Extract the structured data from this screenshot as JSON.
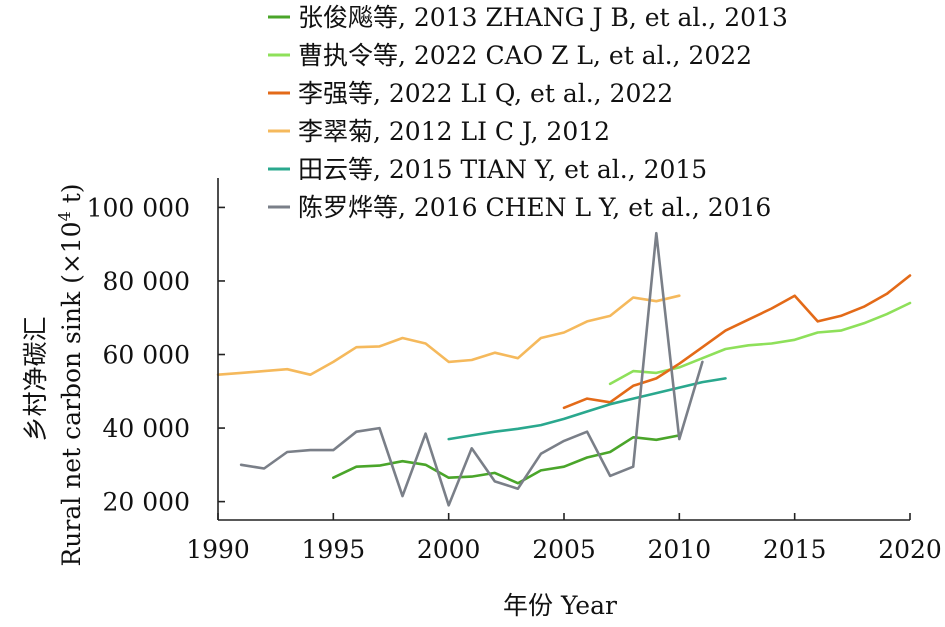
{
  "chart_data": {
    "type": "line",
    "title": "",
    "xlabel": "年份 Year",
    "ylabel_cn": "乡村净碳汇",
    "ylabel_en": "Rural net carbon sink (×10",
    "ylabel_sup": "4",
    "ylabel_tail": " t)",
    "xlim": [
      1990,
      2020
    ],
    "ylim": [
      15000,
      108000
    ],
    "x_ticks": [
      1990,
      1995,
      2000,
      2005,
      2010,
      2015,
      2020
    ],
    "x_tick_labels": [
      "1990",
      "1995",
      "2000",
      "2005",
      "2010",
      "2015",
      "2020"
    ],
    "y_ticks": [
      20000,
      40000,
      60000,
      80000,
      100000
    ],
    "y_tick_labels": [
      "20 000",
      "40 000",
      "60 000",
      "80 000",
      "100 000"
    ],
    "grid": false,
    "legend_position": "top",
    "series": [
      {
        "name": "张俊飚等, 2013 ZHANG J B, et al., 2013",
        "color": "#4aa52a",
        "x": [
          1995,
          1996,
          1997,
          1998,
          1999,
          2000,
          2001,
          2002,
          2003,
          2004,
          2005,
          2006,
          2007,
          2008,
          2009,
          2010
        ],
        "y": [
          26500,
          29500,
          29800,
          31000,
          30000,
          26500,
          26800,
          27800,
          25000,
          28500,
          29500,
          32000,
          33500,
          37500,
          36800,
          38000
        ]
      },
      {
        "name": "曹执令等, 2022 CAO Z L, et al., 2022",
        "color": "#8ee05a",
        "x": [
          2007,
          2008,
          2009,
          2010,
          2011,
          2012,
          2013,
          2014,
          2015,
          2016,
          2017,
          2018,
          2019,
          2020
        ],
        "y": [
          52000,
          55500,
          55000,
          56500,
          59000,
          61500,
          62500,
          63000,
          64000,
          66000,
          66500,
          68500,
          71000,
          74000
        ]
      },
      {
        "name": "李强等, 2022 LI Q, et al., 2022",
        "color": "#e36a18",
        "x": [
          2005,
          2006,
          2007,
          2008,
          2009,
          2010,
          2011,
          2012,
          2013,
          2014,
          2015,
          2016,
          2017,
          2018,
          2019,
          2020
        ],
        "y": [
          45500,
          48000,
          47000,
          51500,
          53500,
          57500,
          62000,
          66500,
          69500,
          72500,
          76000,
          69000,
          70500,
          73000,
          76500,
          81500
        ]
      },
      {
        "name": "李翠菊, 2012 LI C J, 2012",
        "color": "#f5b95c",
        "x": [
          1990,
          1991,
          1992,
          1993,
          1994,
          1995,
          1996,
          1997,
          1998,
          1999,
          2000,
          2001,
          2002,
          2003,
          2004,
          2005,
          2006,
          2007,
          2008,
          2009,
          2010
        ],
        "y": [
          54500,
          55000,
          55500,
          56000,
          54500,
          58000,
          62000,
          62200,
          64500,
          63000,
          58000,
          58500,
          60500,
          59000,
          64500,
          66000,
          69000,
          70500,
          75500,
          74500,
          76000
        ]
      },
      {
        "name": "田云等, 2015 TIAN Y, et al., 2015",
        "color": "#2aa88e",
        "x": [
          2000,
          2001,
          2002,
          2003,
          2004,
          2005,
          2006,
          2007,
          2008,
          2009,
          2010,
          2011,
          2012
        ],
        "y": [
          37000,
          38000,
          39000,
          39800,
          40800,
          42500,
          44500,
          46500,
          48000,
          49500,
          51000,
          52500,
          53500
        ]
      },
      {
        "name": "陈罗烨等, 2016 CHEN L Y, et al., 2016",
        "color": "#7a7f88",
        "x": [
          1991,
          1992,
          1993,
          1994,
          1995,
          1996,
          1997,
          1998,
          1999,
          2000,
          2001,
          2002,
          2003,
          2004,
          2005,
          2006,
          2007,
          2008,
          2009,
          2010,
          2011
        ],
        "y": [
          30000,
          29000,
          33500,
          34000,
          34000,
          39000,
          40000,
          21500,
          38500,
          19000,
          34500,
          25500,
          23500,
          33000,
          36500,
          39000,
          27000,
          29500,
          93000,
          37000,
          58000
        ]
      }
    ]
  }
}
